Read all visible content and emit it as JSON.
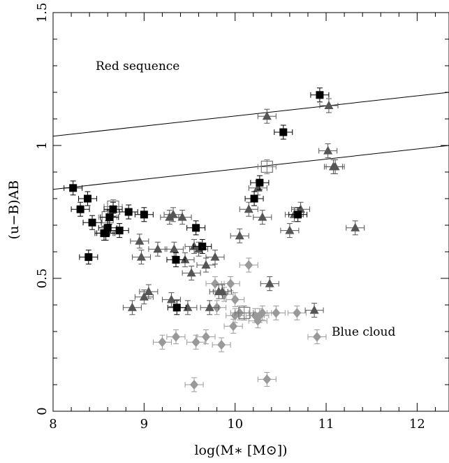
{
  "chart_data": {
    "type": "scatter",
    "xlabel": "log(M∗ [M⊙])",
    "ylabel": "(u−B)AB",
    "xlim": [
      8.0,
      12.35
    ],
    "ylim": [
      0.0,
      1.5
    ],
    "xticks": [
      8,
      9,
      10,
      11,
      12
    ],
    "xtick_labels": [
      "8",
      "9",
      "10",
      "11",
      "12"
    ],
    "yticks": [
      0,
      0.5,
      1,
      1.5
    ],
    "ytick_labels": [
      "0",
      "0.5",
      "1",
      "1.5"
    ],
    "grid": false,
    "annotations": [
      {
        "text": "Red sequence",
        "x": 9.7,
        "y": 1.3
      },
      {
        "text": "Blue cloud",
        "x": 11.2,
        "y": 0.3
      }
    ],
    "lines": [
      {
        "x": [
          8.0,
          12.35
        ],
        "y": [
          1.035,
          1.2
        ]
      },
      {
        "x": [
          8.0,
          12.35
        ],
        "y": [
          0.835,
          1.0
        ]
      }
    ],
    "series": [
      {
        "marker": "square",
        "color": "#000000",
        "x": [
          8.22,
          8.3,
          8.38,
          8.43,
          8.39,
          8.56,
          8.6,
          8.58,
          8.62,
          8.66,
          8.73,
          8.83,
          9.0,
          9.35,
          9.57,
          9.36,
          9.64,
          10.21,
          10.27,
          10.53,
          10.69,
          10.93
        ],
        "y": [
          0.84,
          0.76,
          0.8,
          0.71,
          0.58,
          0.67,
          0.69,
          0.67,
          0.73,
          0.76,
          0.68,
          0.75,
          0.74,
          0.57,
          0.69,
          0.39,
          0.62,
          0.8,
          0.86,
          1.05,
          0.74,
          1.19
        ]
      },
      {
        "marker": "triangle",
        "color": "#555555",
        "x": [
          8.87,
          9.0,
          9.05,
          8.97,
          8.95,
          9.15,
          9.28,
          9.3,
          9.33,
          9.42,
          9.45,
          9.48,
          9.52,
          9.55,
          9.6,
          9.68,
          9.72,
          9.78,
          9.82,
          9.86,
          10.05,
          10.15,
          10.3,
          10.35,
          10.38,
          10.6,
          10.65,
          10.72,
          10.87,
          11.02,
          11.03,
          11.08,
          11.1,
          11.32,
          10.25,
          9.32
        ],
        "y": [
          0.39,
          0.43,
          0.45,
          0.58,
          0.64,
          0.61,
          0.73,
          0.42,
          0.61,
          0.73,
          0.57,
          0.39,
          0.52,
          0.62,
          0.61,
          0.55,
          0.39,
          0.58,
          0.45,
          0.45,
          0.66,
          0.76,
          0.73,
          1.11,
          0.48,
          0.68,
          0.74,
          0.76,
          0.38,
          0.98,
          1.15,
          0.92,
          0.92,
          0.69,
          0.84,
          0.74
        ]
      },
      {
        "marker": "diamond",
        "color": "#999999",
        "x": [
          9.2,
          9.35,
          9.55,
          9.57,
          9.68,
          9.78,
          9.8,
          9.85,
          9.95,
          9.98,
          10.0,
          10.0,
          10.05,
          10.15,
          10.22,
          10.25,
          10.27,
          10.3,
          10.35,
          10.45,
          10.68,
          10.9,
          9.88
        ],
        "y": [
          0.26,
          0.28,
          0.1,
          0.26,
          0.28,
          0.48,
          0.39,
          0.25,
          0.48,
          0.32,
          0.42,
          0.36,
          0.37,
          0.55,
          0.36,
          0.34,
          0.36,
          0.37,
          0.12,
          0.37,
          0.37,
          0.28,
          0.44
        ]
      },
      {
        "marker": "open-square",
        "color": "#777777",
        "x": [
          8.6,
          8.66,
          10.35,
          10.1
        ],
        "y": [
          0.73,
          0.77,
          0.92,
          0.37
        ]
      }
    ]
  }
}
